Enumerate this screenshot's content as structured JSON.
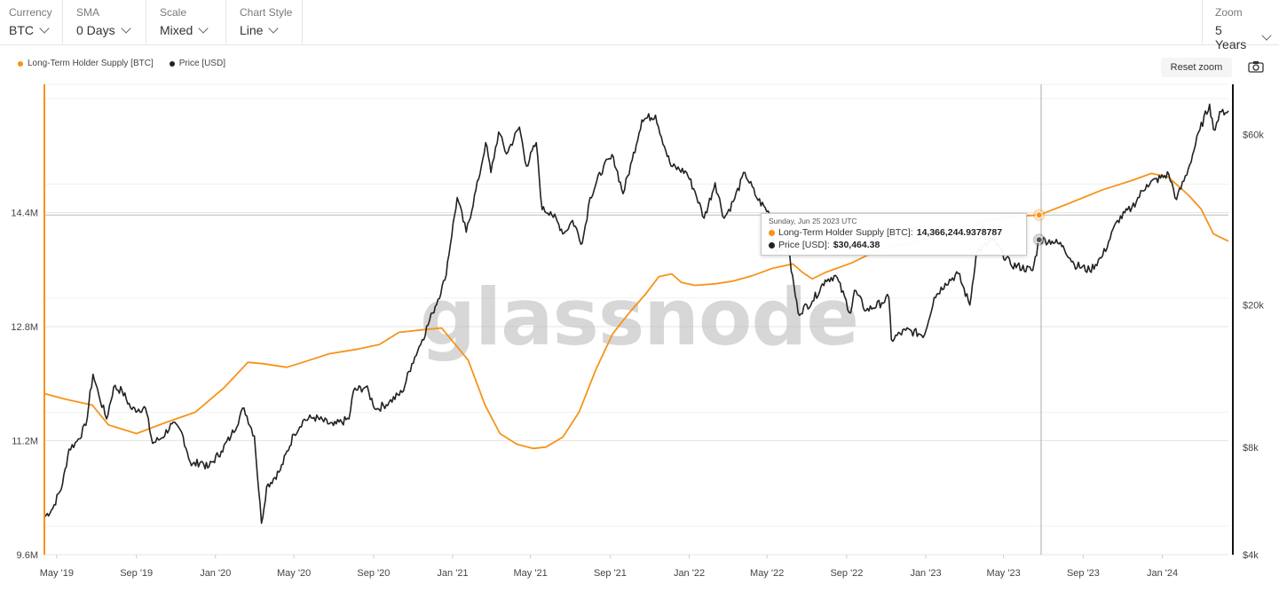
{
  "toolbar": {
    "currency": {
      "label": "Currency",
      "value": "BTC"
    },
    "sma": {
      "label": "SMA",
      "value": "0 Days"
    },
    "scale": {
      "label": "Scale",
      "value": "Mixed"
    },
    "chart_style": {
      "label": "Chart Style",
      "value": "Line"
    },
    "zoom": {
      "label": "Zoom",
      "value": "5 Years"
    }
  },
  "reset_zoom_label": "Reset zoom",
  "watermark": "glassnode",
  "colors": {
    "supply": "#f7931a",
    "price": "#222222",
    "grid": "#e6e6e6",
    "cursor": "#999999"
  },
  "tooltip": {
    "date": "Sunday, Jun 25 2023 UTC",
    "supply_label": "Long-Term Holder Supply [BTC]:",
    "supply_value": "14,366,244.9378787",
    "price_label": "Price [USD]:",
    "price_value": "$30,464.38"
  },
  "chart_data": {
    "type": "line",
    "legend_placement": "top-left",
    "grid": true,
    "x_ticks": [
      "May '19",
      "Sep '19",
      "Jan '20",
      "May '20",
      "Sep '20",
      "Jan '21",
      "May '21",
      "Sep '21",
      "Jan '22",
      "May '22",
      "Sep '22",
      "Jan '23",
      "May '23",
      "Sep '23",
      "Jan '24"
    ],
    "x_tick_dates": [
      "2019-05-01",
      "2019-09-01",
      "2020-01-01",
      "2020-05-01",
      "2020-09-01",
      "2021-01-01",
      "2021-05-01",
      "2021-09-01",
      "2022-01-01",
      "2022-05-01",
      "2022-09-01",
      "2023-01-01",
      "2023-05-01",
      "2023-09-01",
      "2024-01-01"
    ],
    "xlim": [
      "2019-04-12",
      "2024-04-12"
    ],
    "y_left": {
      "ticks": [
        "9.6M",
        "11.2M",
        "12.8M",
        "14.4M"
      ],
      "tick_values": [
        9600000,
        11200000,
        12800000,
        14400000
      ],
      "lim": [
        9600000,
        16200000
      ],
      "scale": "linear"
    },
    "y_right": {
      "ticks": [
        "$4k",
        "$8k",
        "$20k",
        "$60k"
      ],
      "tick_values": [
        4000,
        8000,
        20000,
        60000
      ],
      "lim": [
        4000,
        83000
      ],
      "scale": "log"
    },
    "crosshair": {
      "date": "2023-06-25"
    },
    "series": [
      {
        "name": "Long-Term Holder Supply [BTC]",
        "axis": "left",
        "points": [
          [
            "2019-04-12",
            11860000
          ],
          [
            "2019-05-15",
            11780000
          ],
          [
            "2019-06-25",
            11700000
          ],
          [
            "2019-07-20",
            11420000
          ],
          [
            "2019-09-01",
            11300000
          ],
          [
            "2019-10-15",
            11450000
          ],
          [
            "2019-12-01",
            11600000
          ],
          [
            "2020-01-15",
            11950000
          ],
          [
            "2020-02-20",
            12300000
          ],
          [
            "2020-03-15",
            12280000
          ],
          [
            "2020-04-20",
            12230000
          ],
          [
            "2020-05-15",
            12300000
          ],
          [
            "2020-06-25",
            12420000
          ],
          [
            "2020-08-05",
            12480000
          ],
          [
            "2020-09-10",
            12550000
          ],
          [
            "2020-10-10",
            12720000
          ],
          [
            "2020-11-20",
            12760000
          ],
          [
            "2020-12-15",
            12780000
          ],
          [
            "2021-01-05",
            12550000
          ],
          [
            "2021-01-25",
            12330000
          ],
          [
            "2021-02-20",
            11700000
          ],
          [
            "2021-03-15",
            11300000
          ],
          [
            "2021-04-10",
            11150000
          ],
          [
            "2021-05-05",
            11090000
          ],
          [
            "2021-05-25",
            11110000
          ],
          [
            "2021-06-20",
            11250000
          ],
          [
            "2021-07-15",
            11600000
          ],
          [
            "2021-08-10",
            12200000
          ],
          [
            "2021-09-05",
            12700000
          ],
          [
            "2021-10-01",
            13000000
          ],
          [
            "2021-10-25",
            13250000
          ],
          [
            "2021-11-15",
            13500000
          ],
          [
            "2021-12-05",
            13540000
          ],
          [
            "2021-12-20",
            13420000
          ],
          [
            "2022-01-10",
            13380000
          ],
          [
            "2022-02-10",
            13400000
          ],
          [
            "2022-03-10",
            13440000
          ],
          [
            "2022-04-10",
            13520000
          ],
          [
            "2022-05-10",
            13620000
          ],
          [
            "2022-06-10",
            13680000
          ],
          [
            "2022-06-25",
            13560000
          ],
          [
            "2022-07-10",
            13470000
          ],
          [
            "2022-07-30",
            13560000
          ],
          [
            "2022-09-10",
            13700000
          ],
          [
            "2022-10-20",
            13880000
          ],
          [
            "2022-12-01",
            13960000
          ],
          [
            "2023-01-10",
            14050000
          ],
          [
            "2023-02-20",
            14180000
          ],
          [
            "2023-04-10",
            14300000
          ],
          [
            "2023-05-20",
            14350000
          ],
          [
            "2023-06-25",
            14366245
          ],
          [
            "2023-08-10",
            14530000
          ],
          [
            "2023-10-01",
            14720000
          ],
          [
            "2023-11-15",
            14850000
          ],
          [
            "2023-12-15",
            14950000
          ],
          [
            "2024-01-10",
            14900000
          ],
          [
            "2024-02-10",
            14650000
          ],
          [
            "2024-03-01",
            14450000
          ],
          [
            "2024-03-20",
            14100000
          ],
          [
            "2024-04-12",
            14000000
          ]
        ]
      },
      {
        "name": "Price [USD]",
        "axis": "right",
        "points": [
          [
            "2019-04-12",
            5100
          ],
          [
            "2019-04-25",
            5400
          ],
          [
            "2019-05-10",
            6300
          ],
          [
            "2019-05-20",
            7900
          ],
          [
            "2019-06-01",
            8300
          ],
          [
            "2019-06-15",
            9200
          ],
          [
            "2019-06-26",
            12800
          ],
          [
            "2019-07-05",
            11200
          ],
          [
            "2019-07-17",
            9600
          ],
          [
            "2019-07-28",
            11800
          ],
          [
            "2019-08-10",
            11500
          ],
          [
            "2019-08-25",
            10200
          ],
          [
            "2019-09-15",
            10300
          ],
          [
            "2019-09-26",
            8200
          ],
          [
            "2019-10-10",
            8500
          ],
          [
            "2019-10-26",
            9300
          ],
          [
            "2019-11-10",
            8800
          ],
          [
            "2019-11-25",
            7100
          ],
          [
            "2019-12-10",
            7300
          ],
          [
            "2019-12-20",
            7000
          ],
          [
            "2020-01-10",
            7800
          ],
          [
            "2020-01-25",
            8600
          ],
          [
            "2020-02-14",
            10300
          ],
          [
            "2020-03-01",
            8600
          ],
          [
            "2020-03-12",
            4900
          ],
          [
            "2020-03-20",
            6200
          ],
          [
            "2020-04-10",
            6900
          ],
          [
            "2020-05-01",
            8700
          ],
          [
            "2020-05-15",
            9500
          ],
          [
            "2020-06-01",
            9700
          ],
          [
            "2020-07-01",
            9200
          ],
          [
            "2020-07-25",
            9600
          ],
          [
            "2020-08-01",
            11500
          ],
          [
            "2020-08-20",
            11800
          ],
          [
            "2020-09-05",
            10200
          ],
          [
            "2020-09-25",
            10700
          ],
          [
            "2020-10-15",
            11400
          ],
          [
            "2020-10-30",
            13700
          ],
          [
            "2020-11-15",
            16000
          ],
          [
            "2020-12-01",
            19000
          ],
          [
            "2020-12-20",
            23500
          ],
          [
            "2021-01-08",
            40000
          ],
          [
            "2021-01-22",
            32000
          ],
          [
            "2021-02-10",
            45000
          ],
          [
            "2021-02-21",
            57000
          ],
          [
            "2021-03-01",
            47000
          ],
          [
            "2021-03-13",
            61000
          ],
          [
            "2021-03-25",
            53000
          ],
          [
            "2021-04-14",
            63000
          ],
          [
            "2021-04-25",
            49000
          ],
          [
            "2021-05-10",
            57000
          ],
          [
            "2021-05-19",
            37000
          ],
          [
            "2021-06-01",
            36500
          ],
          [
            "2021-06-22",
            31800
          ],
          [
            "2021-07-05",
            34500
          ],
          [
            "2021-07-20",
            29800
          ],
          [
            "2021-08-01",
            40000
          ],
          [
            "2021-08-22",
            49000
          ],
          [
            "2021-09-06",
            52000
          ],
          [
            "2021-09-21",
            41000
          ],
          [
            "2021-10-05",
            51000
          ],
          [
            "2021-10-20",
            66000
          ],
          [
            "2021-11-10",
            68000
          ],
          [
            "2021-11-26",
            54000
          ],
          [
            "2021-12-04",
            49000
          ],
          [
            "2021-12-28",
            47000
          ],
          [
            "2022-01-10",
            41500
          ],
          [
            "2022-01-24",
            35000
          ],
          [
            "2022-02-10",
            44000
          ],
          [
            "2022-02-24",
            35000
          ],
          [
            "2022-03-10",
            39000
          ],
          [
            "2022-03-28",
            47000
          ],
          [
            "2022-04-15",
            40000
          ],
          [
            "2022-05-05",
            36000
          ],
          [
            "2022-05-12",
            28500
          ],
          [
            "2022-06-01",
            30000
          ],
          [
            "2022-06-18",
            19000
          ],
          [
            "2022-07-10",
            20500
          ],
          [
            "2022-07-30",
            23500
          ],
          [
            "2022-08-15",
            24200
          ],
          [
            "2022-09-07",
            19000
          ],
          [
            "2022-09-13",
            22000
          ],
          [
            "2022-10-01",
            19300
          ],
          [
            "2022-10-25",
            20300
          ],
          [
            "2022-11-05",
            21000
          ],
          [
            "2022-11-09",
            16000
          ],
          [
            "2022-12-01",
            17000
          ],
          [
            "2022-12-30",
            16500
          ],
          [
            "2023-01-14",
            21000
          ],
          [
            "2023-01-31",
            23000
          ],
          [
            "2023-02-20",
            24500
          ],
          [
            "2023-03-10",
            20000
          ],
          [
            "2023-03-20",
            28000
          ],
          [
            "2023-04-14",
            30500
          ],
          [
            "2023-05-12",
            26000
          ],
          [
            "2023-06-15",
            25000
          ],
          [
            "2023-06-25",
            30464
          ],
          [
            "2023-07-15",
            30200
          ],
          [
            "2023-08-01",
            29300
          ],
          [
            "2023-08-18",
            26000
          ],
          [
            "2023-09-11",
            25000
          ],
          [
            "2023-10-01",
            27500
          ],
          [
            "2023-10-24",
            34500
          ],
          [
            "2023-11-15",
            37500
          ],
          [
            "2023-12-08",
            43500
          ],
          [
            "2024-01-11",
            46500
          ],
          [
            "2024-01-23",
            39500
          ],
          [
            "2024-02-10",
            48000
          ],
          [
            "2024-02-28",
            62000
          ],
          [
            "2024-03-14",
            73000
          ],
          [
            "2024-03-20",
            62000
          ],
          [
            "2024-04-01",
            69500
          ],
          [
            "2024-04-12",
            70000
          ]
        ]
      }
    ]
  }
}
